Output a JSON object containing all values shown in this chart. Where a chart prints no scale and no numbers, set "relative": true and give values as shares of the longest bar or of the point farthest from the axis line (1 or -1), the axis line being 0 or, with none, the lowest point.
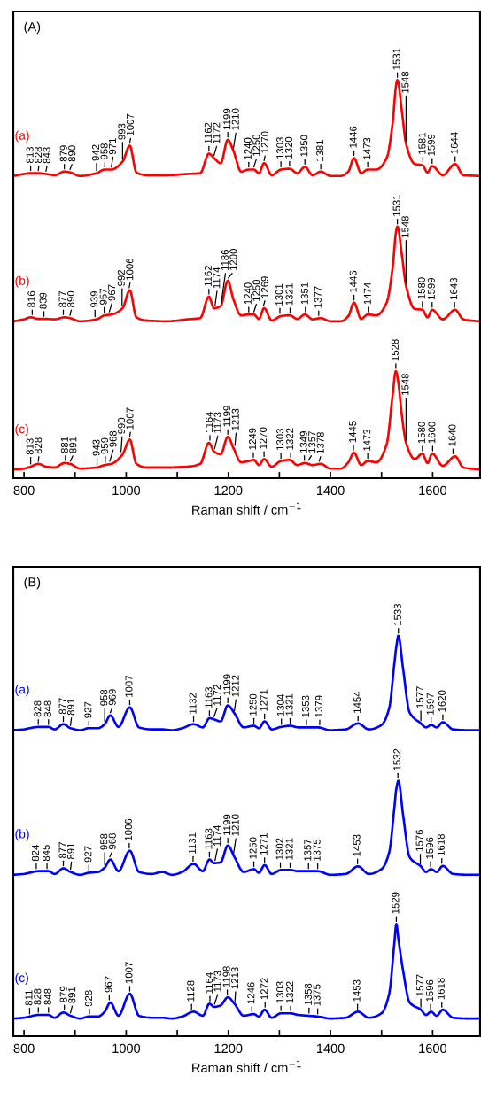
{
  "chart_data": [
    {
      "type": "line",
      "title": "(A)",
      "xlabel": "Raman shift / cm$^{−1}$",
      "relative": true,
      "xlim": [
        779,
        1693
      ],
      "xticks": [
        800,
        {
          "value": 900,
          "label": null
        },
        1000,
        {
          "value": 1100,
          "label": null
        },
        1200,
        {
          "value": 1300,
          "label": null
        },
        1400,
        {
          "value": 1500,
          "label": null
        },
        1600
      ],
      "x": [
        780,
        800,
        813,
        828,
        843,
        860,
        879,
        890,
        910,
        942,
        958,
        971,
        993,
        1007,
        1020,
        1040,
        1080,
        1120,
        1145,
        1162,
        1172,
        1185,
        1199,
        1210,
        1225,
        1240,
        1250,
        1260,
        1270,
        1285,
        1303,
        1320,
        1335,
        1350,
        1365,
        1381,
        1400,
        1420,
        1435,
        1446,
        1460,
        1473,
        1490,
        1510,
        1522,
        1528,
        1531,
        1540,
        1548,
        1565,
        1580,
        1590,
        1599,
        1620,
        1644,
        1660,
        1690
      ],
      "series": [
        {
          "name": "(a)",
          "color": "#ff0000",
          "values": [
            0.759,
            0.764,
            0.766,
            0.766,
            0.764,
            0.761,
            0.77,
            0.768,
            0.759,
            0.766,
            0.775,
            0.775,
            0.795,
            0.835,
            0.768,
            0.761,
            0.761,
            0.764,
            0.766,
            0.815,
            0.804,
            0.791,
            0.85,
            0.822,
            0.77,
            0.775,
            0.775,
            0.766,
            0.791,
            0.761,
            0.775,
            0.777,
            0.766,
            0.782,
            0.761,
            0.77,
            0.759,
            0.759,
            0.77,
            0.804,
            0.766,
            0.775,
            0.775,
            0.804,
            0.895,
            0.982,
            1.0,
            0.92,
            0.84,
            0.789,
            0.786,
            0.768,
            0.784,
            0.761,
            0.789,
            0.761,
            0.759
          ]
        },
        {
          "name": "(b)",
          "color": "#ff0000",
          "values": [
            0.394,
            0.399,
            0.404,
            0.4,
            0.4,
            0.399,
            0.404,
            0.402,
            0.394,
            0.399,
            0.409,
            0.411,
            0.427,
            0.472,
            0.404,
            0.396,
            0.394,
            0.399,
            0.402,
            0.456,
            0.427,
            0.432,
            0.496,
            0.449,
            0.409,
            0.411,
            0.411,
            0.4,
            0.427,
            0.396,
            0.407,
            0.409,
            0.4,
            0.411,
            0.399,
            0.402,
            0.394,
            0.394,
            0.407,
            0.441,
            0.4,
            0.411,
            0.409,
            0.441,
            0.532,
            0.615,
            0.632,
            0.559,
            0.483,
            0.425,
            0.423,
            0.404,
            0.423,
            0.399,
            0.423,
            0.399,
            0.394
          ]
        },
        {
          "name": "(c)",
          "color": "#ff0000",
          "values": [
            0.022,
            0.024,
            0.029,
            0.036,
            0.029,
            0.027,
            0.038,
            0.036,
            0.024,
            0.027,
            0.033,
            0.036,
            0.06,
            0.097,
            0.036,
            0.027,
            0.027,
            0.029,
            0.036,
            0.089,
            0.067,
            0.06,
            0.104,
            0.076,
            0.04,
            0.043,
            0.046,
            0.033,
            0.048,
            0.029,
            0.043,
            0.046,
            0.033,
            0.038,
            0.033,
            0.036,
            0.024,
            0.024,
            0.04,
            0.064,
            0.033,
            0.043,
            0.04,
            0.085,
            0.212,
            0.269,
            0.256,
            0.156,
            0.089,
            0.048,
            0.062,
            0.038,
            0.062,
            0.031,
            0.055,
            0.027,
            0.022
          ]
        }
      ],
      "annotations": [
        {
          "text": "813",
          "x": 813,
          "y": 0.766
        },
        {
          "text": "828",
          "x": 828,
          "y": 0.766
        },
        {
          "text": "843",
          "x": 843,
          "y": 0.764
        },
        {
          "text": "879",
          "x": 879,
          "y": 0.77
        },
        {
          "text": "890",
          "x": 890,
          "y": 0.768
        },
        {
          "text": "942",
          "x": 942,
          "y": 0.766
        },
        {
          "text": "958",
          "x": 958,
          "y": 0.775
        },
        {
          "text": "971",
          "x": 971,
          "y": 0.775
        },
        {
          "text": "993",
          "x": 993,
          "y": 0.795
        },
        {
          "text": "1007",
          "x": 1007,
          "y": 0.835
        },
        {
          "text": "1162",
          "x": 1162,
          "y": 0.815
        },
        {
          "text": "1172",
          "x": 1172,
          "y": 0.804
        },
        {
          "text": "1199",
          "x": 1199,
          "y": 0.85
        },
        {
          "text": "1210",
          "x": 1210,
          "y": 0.822
        },
        {
          "text": "1240",
          "x": 1240,
          "y": 0.775
        },
        {
          "text": "1250",
          "x": 1250,
          "y": 0.775
        },
        {
          "text": "1270",
          "x": 1270,
          "y": 0.791
        },
        {
          "text": "1303",
          "x": 1303,
          "y": 0.775
        },
        {
          "text": "1320",
          "x": 1320,
          "y": 0.777
        },
        {
          "text": "1350",
          "x": 1350,
          "y": 0.782
        },
        {
          "text": "1381",
          "x": 1381,
          "y": 0.77
        },
        {
          "text": "1446",
          "x": 1446,
          "y": 0.804
        },
        {
          "text": "1473",
          "x": 1473,
          "y": 0.775
        },
        {
          "text": "1531",
          "x": 1531,
          "y": 1.0
        },
        {
          "text": "1548",
          "x": 1548,
          "y": 0.84
        },
        {
          "text": "1581",
          "x": 1581,
          "y": 0.786
        },
        {
          "text": "1599",
          "x": 1599,
          "y": 0.784
        },
        {
          "text": "1644",
          "x": 1644,
          "y": 0.789
        },
        {
          "text": "816",
          "x": 816,
          "y": 0.404
        },
        {
          "text": "839",
          "x": 839,
          "y": 0.4
        },
        {
          "text": "877",
          "x": 877,
          "y": 0.404
        },
        {
          "text": "890",
          "x": 890,
          "y": 0.402
        },
        {
          "text": "939",
          "x": 939,
          "y": 0.399
        },
        {
          "text": "957",
          "x": 957,
          "y": 0.409
        },
        {
          "text": "967",
          "x": 967,
          "y": 0.411
        },
        {
          "text": "992",
          "x": 992,
          "y": 0.427
        },
        {
          "text": "1006",
          "x": 1006,
          "y": 0.472
        },
        {
          "text": "1162",
          "x": 1162,
          "y": 0.456
        },
        {
          "text": "1174",
          "x": 1174,
          "y": 0.427
        },
        {
          "text": "1186",
          "x": 1186,
          "y": 0.432
        },
        {
          "text": "1200",
          "x": 1200,
          "y": 0.496
        },
        {
          "text": "1240",
          "x": 1240,
          "y": 0.411
        },
        {
          "text": "1250",
          "x": 1250,
          "y": 0.411
        },
        {
          "text": "1269",
          "x": 1269,
          "y": 0.427
        },
        {
          "text": "1301",
          "x": 1301,
          "y": 0.407
        },
        {
          "text": "1321",
          "x": 1321,
          "y": 0.409
        },
        {
          "text": "1351",
          "x": 1351,
          "y": 0.411
        },
        {
          "text": "1377",
          "x": 1377,
          "y": 0.402
        },
        {
          "text": "1446",
          "x": 1446,
          "y": 0.441
        },
        {
          "text": "1474",
          "x": 1474,
          "y": 0.411
        },
        {
          "text": "1531",
          "x": 1531,
          "y": 0.632
        },
        {
          "text": "1548",
          "x": 1548,
          "y": 0.483
        },
        {
          "text": "1580",
          "x": 1580,
          "y": 0.423
        },
        {
          "text": "1599",
          "x": 1599,
          "y": 0.423
        },
        {
          "text": "1643",
          "x": 1643,
          "y": 0.423
        },
        {
          "text": "813",
          "x": 813,
          "y": 0.029
        },
        {
          "text": "828",
          "x": 828,
          "y": 0.036
        },
        {
          "text": "881",
          "x": 881,
          "y": 0.038
        },
        {
          "text": "891",
          "x": 891,
          "y": 0.036
        },
        {
          "text": "943",
          "x": 943,
          "y": 0.027
        },
        {
          "text": "959",
          "x": 959,
          "y": 0.033
        },
        {
          "text": "968",
          "x": 968,
          "y": 0.036
        },
        {
          "text": "990",
          "x": 990,
          "y": 0.06
        },
        {
          "text": "1007",
          "x": 1007,
          "y": 0.097
        },
        {
          "text": "1164",
          "x": 1164,
          "y": 0.089
        },
        {
          "text": "1173",
          "x": 1173,
          "y": 0.067
        },
        {
          "text": "1199",
          "x": 1199,
          "y": 0.104
        },
        {
          "text": "1213",
          "x": 1213,
          "y": 0.076
        },
        {
          "text": "1249",
          "x": 1249,
          "y": 0.046
        },
        {
          "text": "1270",
          "x": 1270,
          "y": 0.048
        },
        {
          "text": "1303",
          "x": 1303,
          "y": 0.043
        },
        {
          "text": "1322",
          "x": 1322,
          "y": 0.046
        },
        {
          "text": "1349",
          "x": 1349,
          "y": 0.038
        },
        {
          "text": "1357",
          "x": 1357,
          "y": 0.038
        },
        {
          "text": "1378",
          "x": 1378,
          "y": 0.036
        },
        {
          "text": "1445",
          "x": 1445,
          "y": 0.064
        },
        {
          "text": "1473",
          "x": 1473,
          "y": 0.043
        },
        {
          "text": "1528",
          "x": 1528,
          "y": 0.269
        },
        {
          "text": "1548",
          "x": 1548,
          "y": 0.089
        },
        {
          "text": "1580",
          "x": 1580,
          "y": 0.062
        },
        {
          "text": "1600",
          "x": 1600,
          "y": 0.062
        },
        {
          "text": "1640",
          "x": 1640,
          "y": 0.055
        }
      ]
    },
    {
      "type": "line",
      "title": "(B)",
      "xlabel": "Raman shift / cm$^{−1}$",
      "relative": true,
      "xlim": [
        779,
        1693
      ],
      "xticks": [
        800,
        {
          "value": 900,
          "label": null
        },
        1000,
        {
          "value": 1100,
          "label": null
        },
        1200,
        {
          "value": 1300,
          "label": null
        },
        1400,
        {
          "value": 1500,
          "label": null
        },
        1600
      ],
      "x": [
        780,
        800,
        811,
        828,
        848,
        860,
        877,
        891,
        910,
        927,
        945,
        958,
        969,
        985,
        1007,
        1025,
        1050,
        1070,
        1090,
        1110,
        1132,
        1150,
        1163,
        1172,
        1185,
        1199,
        1212,
        1230,
        1250,
        1260,
        1271,
        1285,
        1303,
        1321,
        1337,
        1355,
        1375,
        1400,
        1430,
        1454,
        1475,
        1500,
        1515,
        1525,
        1529,
        1533,
        1542,
        1555,
        1577,
        1587,
        1597,
        1608,
        1620,
        1640,
        1670,
        1690
      ],
      "series": [
        {
          "name": "(a)",
          "color": "#0000ff",
          "values": [
            0.764,
            0.766,
            0.769,
            0.772,
            0.772,
            0.766,
            0.779,
            0.769,
            0.764,
            0.769,
            0.769,
            0.779,
            0.801,
            0.772,
            0.821,
            0.771,
            0.766,
            0.766,
            0.764,
            0.769,
            0.779,
            0.771,
            0.794,
            0.791,
            0.786,
            0.826,
            0.806,
            0.771,
            0.775,
            0.769,
            0.786,
            0.766,
            0.772,
            0.775,
            0.771,
            0.771,
            0.771,
            0.764,
            0.766,
            0.781,
            0.766,
            0.777,
            0.819,
            0.929,
            0.973,
            1.0,
            0.919,
            0.808,
            0.781,
            0.771,
            0.777,
            0.771,
            0.784,
            0.766,
            0.764,
            0.764
          ]
        },
        {
          "name": "(b)",
          "color": "#0000ff",
          "values": [
            0.403,
            0.405,
            0.408,
            0.412,
            0.412,
            0.405,
            0.419,
            0.41,
            0.403,
            0.408,
            0.41,
            0.421,
            0.441,
            0.412,
            0.463,
            0.41,
            0.405,
            0.41,
            0.403,
            0.41,
            0.43,
            0.412,
            0.441,
            0.432,
            0.434,
            0.476,
            0.447,
            0.41,
            0.417,
            0.408,
            0.427,
            0.405,
            0.415,
            0.415,
            0.412,
            0.412,
            0.412,
            0.403,
            0.405,
            0.424,
            0.405,
            0.417,
            0.459,
            0.569,
            0.618,
            0.638,
            0.554,
            0.447,
            0.424,
            0.41,
            0.417,
            0.41,
            0.425,
            0.405,
            0.403,
            0.403
          ]
        },
        {
          "name": "(c)",
          "color": "#0000ff",
          "values": [
            0.044,
            0.046,
            0.049,
            0.053,
            0.053,
            0.046,
            0.059,
            0.051,
            0.044,
            0.049,
            0.049,
            0.061,
            0.084,
            0.051,
            0.106,
            0.051,
            0.046,
            0.046,
            0.044,
            0.049,
            0.061,
            0.051,
            0.081,
            0.073,
            0.077,
            0.097,
            0.081,
            0.051,
            0.055,
            0.049,
            0.066,
            0.046,
            0.057,
            0.057,
            0.053,
            0.051,
            0.049,
            0.044,
            0.046,
            0.061,
            0.046,
            0.057,
            0.106,
            0.231,
            0.28,
            0.243,
            0.165,
            0.084,
            0.066,
            0.053,
            0.061,
            0.051,
            0.066,
            0.046,
            0.044,
            0.044
          ]
        }
      ],
      "annotations": [
        {
          "text": "828",
          "x": 828,
          "y": 0.772
        },
        {
          "text": "848",
          "x": 848,
          "y": 0.772
        },
        {
          "text": "877",
          "x": 877,
          "y": 0.779
        },
        {
          "text": "891",
          "x": 891,
          "y": 0.769
        },
        {
          "text": "927",
          "x": 927,
          "y": 0.769
        },
        {
          "text": "958",
          "x": 958,
          "y": 0.779
        },
        {
          "text": "969",
          "x": 969,
          "y": 0.801
        },
        {
          "text": "1007",
          "x": 1007,
          "y": 0.821
        },
        {
          "text": "1132",
          "x": 1132,
          "y": 0.779
        },
        {
          "text": "1163",
          "x": 1163,
          "y": 0.794
        },
        {
          "text": "1172",
          "x": 1172,
          "y": 0.791
        },
        {
          "text": "1199",
          "x": 1199,
          "y": 0.826
        },
        {
          "text": "1212",
          "x": 1212,
          "y": 0.806
        },
        {
          "text": "1250",
          "x": 1250,
          "y": 0.775
        },
        {
          "text": "1271",
          "x": 1271,
          "y": 0.786
        },
        {
          "text": "1304",
          "x": 1304,
          "y": 0.772
        },
        {
          "text": "1321",
          "x": 1321,
          "y": 0.775
        },
        {
          "text": "1353",
          "x": 1353,
          "y": 0.771
        },
        {
          "text": "1379",
          "x": 1379,
          "y": 0.771
        },
        {
          "text": "1454",
          "x": 1454,
          "y": 0.781
        },
        {
          "text": "1533",
          "x": 1533,
          "y": 1.0
        },
        {
          "text": "1577",
          "x": 1577,
          "y": 0.781
        },
        {
          "text": "1597",
          "x": 1597,
          "y": 0.777
        },
        {
          "text": "1620",
          "x": 1620,
          "y": 0.784
        },
        {
          "text": "824",
          "x": 824,
          "y": 0.412
        },
        {
          "text": "845",
          "x": 845,
          "y": 0.412
        },
        {
          "text": "877",
          "x": 877,
          "y": 0.419
        },
        {
          "text": "891",
          "x": 891,
          "y": 0.41
        },
        {
          "text": "927",
          "x": 927,
          "y": 0.408
        },
        {
          "text": "958",
          "x": 958,
          "y": 0.421
        },
        {
          "text": "968",
          "x": 968,
          "y": 0.441
        },
        {
          "text": "1006",
          "x": 1006,
          "y": 0.463
        },
        {
          "text": "1131",
          "x": 1131,
          "y": 0.43
        },
        {
          "text": "1163",
          "x": 1163,
          "y": 0.441
        },
        {
          "text": "1174",
          "x": 1174,
          "y": 0.432
        },
        {
          "text": "1199",
          "x": 1199,
          "y": 0.476
        },
        {
          "text": "1210",
          "x": 1210,
          "y": 0.447
        },
        {
          "text": "1250",
          "x": 1250,
          "y": 0.417
        },
        {
          "text": "1271",
          "x": 1271,
          "y": 0.427
        },
        {
          "text": "1302",
          "x": 1302,
          "y": 0.415
        },
        {
          "text": "1321",
          "x": 1321,
          "y": 0.415
        },
        {
          "text": "1357",
          "x": 1357,
          "y": 0.412
        },
        {
          "text": "1375",
          "x": 1375,
          "y": 0.412
        },
        {
          "text": "1453",
          "x": 1453,
          "y": 0.424
        },
        {
          "text": "1532",
          "x": 1532,
          "y": 0.638
        },
        {
          "text": "1576",
          "x": 1576,
          "y": 0.424
        },
        {
          "text": "1596",
          "x": 1596,
          "y": 0.417
        },
        {
          "text": "1618",
          "x": 1618,
          "y": 0.425
        },
        {
          "text": "811",
          "x": 811,
          "y": 0.049
        },
        {
          "text": "828",
          "x": 828,
          "y": 0.053
        },
        {
          "text": "848",
          "x": 848,
          "y": 0.053
        },
        {
          "text": "879",
          "x": 879,
          "y": 0.059
        },
        {
          "text": "891",
          "x": 891,
          "y": 0.051
        },
        {
          "text": "928",
          "x": 928,
          "y": 0.049
        },
        {
          "text": "967",
          "x": 967,
          "y": 0.084
        },
        {
          "text": "1007",
          "x": 1007,
          "y": 0.106
        },
        {
          "text": "1128",
          "x": 1128,
          "y": 0.061
        },
        {
          "text": "1164",
          "x": 1164,
          "y": 0.081
        },
        {
          "text": "1173",
          "x": 1173,
          "y": 0.073
        },
        {
          "text": "1198",
          "x": 1198,
          "y": 0.097
        },
        {
          "text": "1213",
          "x": 1213,
          "y": 0.081
        },
        {
          "text": "1246",
          "x": 1246,
          "y": 0.055
        },
        {
          "text": "1272",
          "x": 1272,
          "y": 0.066
        },
        {
          "text": "1303",
          "x": 1303,
          "y": 0.057
        },
        {
          "text": "1322",
          "x": 1322,
          "y": 0.057
        },
        {
          "text": "1358",
          "x": 1358,
          "y": 0.051
        },
        {
          "text": "1375",
          "x": 1375,
          "y": 0.049
        },
        {
          "text": "1453",
          "x": 1453,
          "y": 0.061
        },
        {
          "text": "1529",
          "x": 1529,
          "y": 0.28
        },
        {
          "text": "1577",
          "x": 1577,
          "y": 0.066
        },
        {
          "text": "1596",
          "x": 1596,
          "y": 0.061
        },
        {
          "text": "1618",
          "x": 1618,
          "y": 0.066
        }
      ]
    }
  ]
}
